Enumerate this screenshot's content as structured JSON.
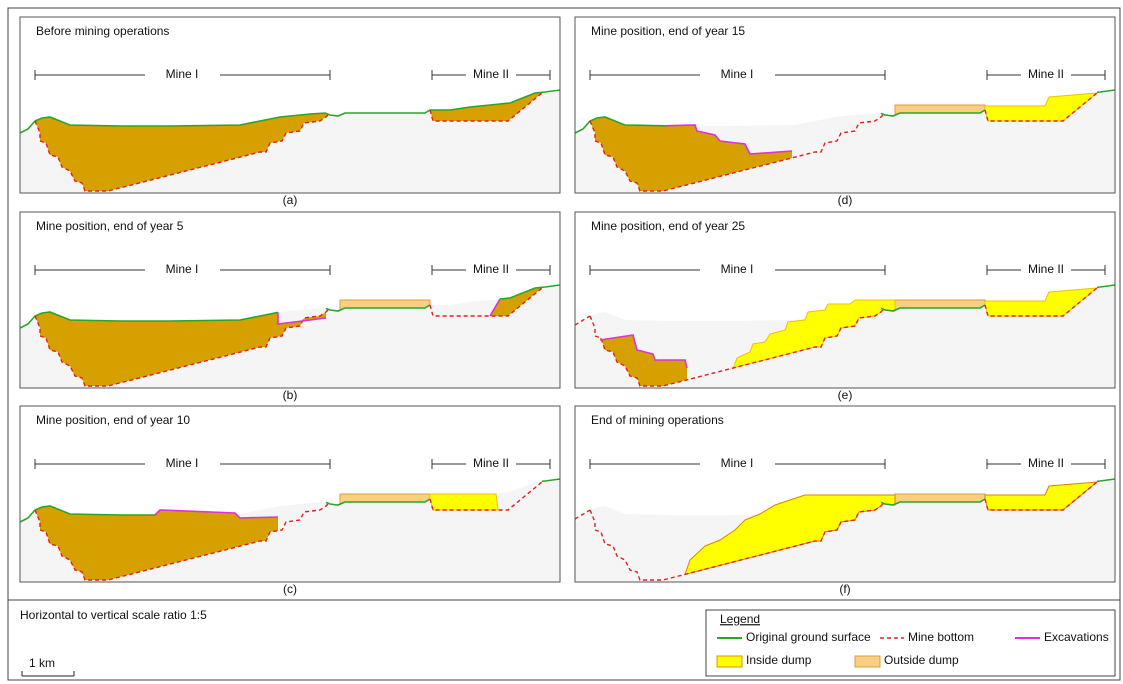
{
  "panels": [
    {
      "title": "Before mining operations",
      "mine_1": "Mine I",
      "mine_2": "Mine II",
      "caption": "(a)"
    },
    {
      "title": "Mine position, end of year 5",
      "mine_1": "Mine I",
      "mine_2": "Mine II",
      "caption": "(b)"
    },
    {
      "title": "Mine position, end of year 10",
      "mine_1": "Mine I",
      "mine_2": "Mine II",
      "caption": "(c)"
    },
    {
      "title": "Mine position, end of year 15",
      "mine_1": "Mine I",
      "mine_2": "Mine II",
      "caption": "(d)"
    },
    {
      "title": "Mine position, end of year 25",
      "mine_1": "Mine I",
      "mine_2": "Mine II",
      "caption": "(e)"
    },
    {
      "title": "End of mining operations",
      "mine_1": "Mine I",
      "mine_2": "Mine II",
      "caption": "(f)"
    }
  ],
  "note": "Horizontal to vertical scale ratio 1:5",
  "scale_label": "1 km",
  "legend": {
    "title": "Legend",
    "items": [
      "Original ground surface",
      "Mine bottom",
      "Excavations",
      "Inside dump",
      "Outside dump"
    ]
  }
}
